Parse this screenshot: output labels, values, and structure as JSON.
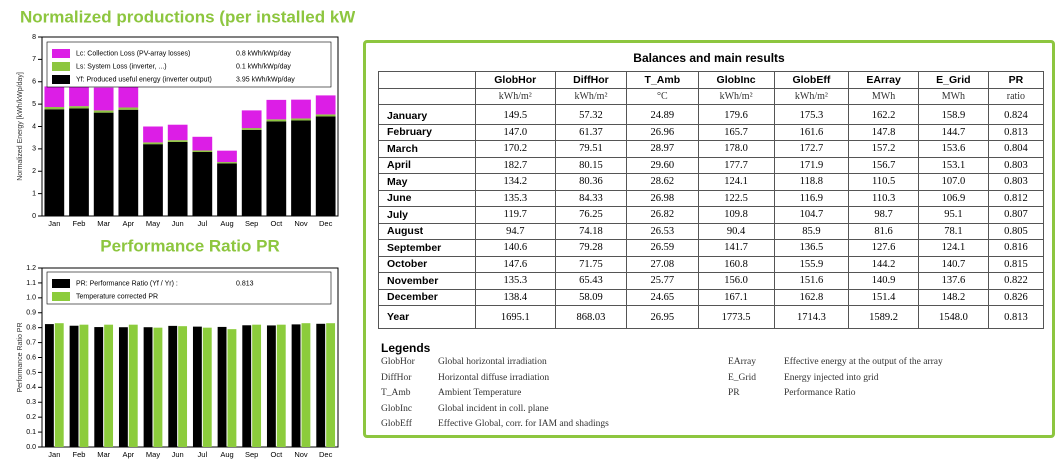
{
  "chart_data": [
    {
      "type": "bar",
      "stacked": true,
      "title": "Normalized productions (per installed kWp)",
      "y_label": "Normalized Energy [kWh/kWp/day]",
      "categories": [
        "Jan",
        "Feb",
        "Mar",
        "Apr",
        "May",
        "Jun",
        "Jul",
        "Aug",
        "Sep",
        "Oct",
        "Nov",
        "Dec"
      ],
      "series": [
        {
          "name": "Lc: Collection Loss (PV-array losses)",
          "legend_value": "0.8 kWh/kWp/day",
          "color": "#dc1ee6",
          "values": [
            0.92,
            1.01,
            1.02,
            1.07,
            0.71,
            0.69,
            0.61,
            0.51,
            0.79,
            0.87,
            0.84,
            0.85
          ]
        },
        {
          "name": "Ls: System Loss  (inverter, ...)",
          "legend_value": "0.1 kWh/kWp/day",
          "color": "#8dc63f",
          "values": [
            0.1,
            0.1,
            0.1,
            0.1,
            0.08,
            0.08,
            0.07,
            0.06,
            0.08,
            0.09,
            0.09,
            0.09
          ]
        },
        {
          "name": "Yf: Produced useful energy  (inverter output)",
          "legend_value": "3.95 kWh/kWp/day",
          "color": "#000000",
          "values": [
            4.77,
            4.81,
            4.62,
            4.75,
            3.21,
            3.31,
            2.86,
            2.35,
            3.85,
            4.23,
            4.27,
            4.45
          ]
        }
      ],
      "ylim": [
        0,
        8
      ],
      "yticks": [
        0,
        1,
        2,
        3,
        4,
        5,
        6,
        7,
        8
      ]
    },
    {
      "type": "bar",
      "stacked": false,
      "title": "Performance Ratio PR",
      "y_label": "Performance Ratio PR",
      "categories": [
        "Jan",
        "Feb",
        "Mar",
        "Apr",
        "May",
        "Jun",
        "Jul",
        "Aug",
        "Sep",
        "Oct",
        "Nov",
        "Dec"
      ],
      "series": [
        {
          "name": "PR: Performance Ratio (Yf / Yr) :",
          "legend_value": "0.813",
          "color": "#000000",
          "values": [
            0.824,
            0.813,
            0.804,
            0.803,
            0.803,
            0.812,
            0.807,
            0.805,
            0.816,
            0.815,
            0.822,
            0.826
          ]
        },
        {
          "name": "Temperature corrected PR",
          "color": "#8ccc3c",
          "values": [
            0.83,
            0.82,
            0.82,
            0.82,
            0.8,
            0.81,
            0.8,
            0.79,
            0.82,
            0.82,
            0.83,
            0.83
          ]
        }
      ],
      "ylim": [
        0,
        1.2
      ],
      "yticks": [
        {
          "value": 0,
          "label": "0.0"
        },
        0.1,
        0.2,
        0.3,
        0.4,
        0.5,
        0.6,
        0.7,
        0.8,
        0.9,
        {
          "value": 1,
          "label": "1.0"
        },
        1.1,
        1.2
      ]
    }
  ],
  "results": {
    "title": "Balances and main results",
    "columns": [
      {
        "name": "GlobHor",
        "unit": "kWh/m²"
      },
      {
        "name": "DiffHor",
        "unit": "kWh/m²"
      },
      {
        "name": "T_Amb",
        "unit": "°C"
      },
      {
        "name": "GlobInc",
        "unit": "kWh/m²"
      },
      {
        "name": "GlobEff",
        "unit": "kWh/m²"
      },
      {
        "name": "EArray",
        "unit": "MWh"
      },
      {
        "name": "E_Grid",
        "unit": "MWh"
      },
      {
        "name": "PR",
        "unit": "ratio"
      }
    ],
    "rows": [
      [
        "January",
        "149.5",
        "57.32",
        "24.89",
        "179.6",
        "175.3",
        "162.2",
        "158.9",
        "0.824"
      ],
      [
        "February",
        "147.0",
        "61.37",
        "26.96",
        "165.7",
        "161.6",
        "147.8",
        "144.7",
        "0.813"
      ],
      [
        "March",
        "170.2",
        "79.51",
        "28.97",
        "178.0",
        "172.7",
        "157.2",
        "153.6",
        "0.804"
      ],
      [
        "April",
        "182.7",
        "80.15",
        "29.60",
        "177.7",
        "171.9",
        "156.7",
        "153.1",
        "0.803"
      ],
      [
        "May",
        "134.2",
        "80.36",
        "28.62",
        "124.1",
        "118.8",
        "110.5",
        "107.0",
        "0.803"
      ],
      [
        "June",
        "135.3",
        "84.33",
        "26.98",
        "122.5",
        "116.9",
        "110.3",
        "106.9",
        "0.812"
      ],
      [
        "July",
        "119.7",
        "76.25",
        "26.82",
        "109.8",
        "104.7",
        "98.7",
        "95.1",
        "0.807"
      ],
      [
        "August",
        "94.7",
        "74.18",
        "26.53",
        "90.4",
        "85.9",
        "81.6",
        "78.1",
        "0.805"
      ],
      [
        "September",
        "140.6",
        "79.28",
        "26.59",
        "141.7",
        "136.5",
        "127.6",
        "124.1",
        "0.816"
      ],
      [
        "October",
        "147.6",
        "71.75",
        "27.08",
        "160.8",
        "155.9",
        "144.2",
        "140.7",
        "0.815"
      ],
      [
        "November",
        "135.3",
        "65.43",
        "25.77",
        "156.0",
        "151.6",
        "140.9",
        "137.6",
        "0.822"
      ],
      [
        "December",
        "138.4",
        "58.09",
        "24.65",
        "167.1",
        "162.8",
        "151.4",
        "148.2",
        "0.826"
      ]
    ],
    "total": [
      "Year",
      "1695.1",
      "868.03",
      "26.95",
      "1773.5",
      "1714.3",
      "1589.2",
      "1548.0",
      "0.813"
    ],
    "legends_title": "Legends",
    "legends_left": [
      [
        "GlobHor",
        "Global horizontal irradiation"
      ],
      [
        "DiffHor",
        "Horizontal diffuse irradiation"
      ],
      [
        "T_Amb",
        "Ambient Temperature"
      ],
      [
        "GlobInc",
        "Global incident in coll. plane"
      ],
      [
        "GlobEff",
        "Effective Global, corr. for IAM and shadings"
      ]
    ],
    "legends_right": [
      [
        "EArray",
        "Effective energy at the output of the array"
      ],
      [
        "E_Grid",
        "Energy injected into grid"
      ],
      [
        "PR",
        "Performance Ratio"
      ]
    ]
  }
}
